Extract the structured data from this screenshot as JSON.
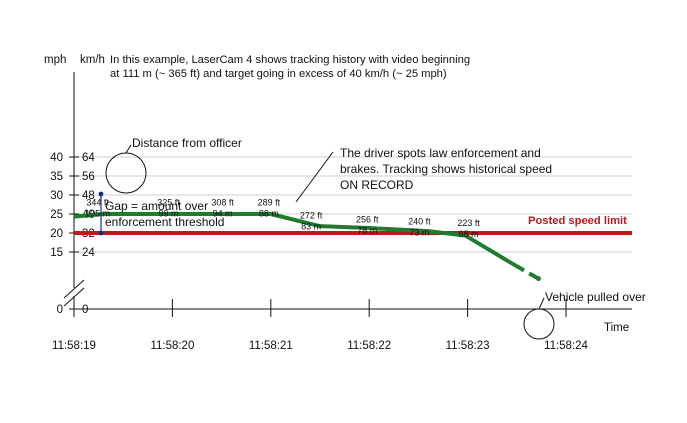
{
  "chart_data": {
    "type": "line",
    "axes": {
      "left_unit_label": "mph",
      "right_unit_label": "km/h",
      "x_label": "Time",
      "mph_ticks": [
        "40",
        "35",
        "30",
        "25",
        "20",
        "15",
        "0"
      ],
      "kmh_ticks": [
        "64",
        "56",
        "48",
        "40",
        "32",
        "24",
        "0"
      ],
      "x_ticks": [
        "11:58:19",
        "11:58:20",
        "11:58:21",
        "11:58:22",
        "11:58:23",
        "11:58:24"
      ],
      "ylim_mph": [
        0,
        40
      ]
    },
    "intro_text": [
      "In this example, LaserCam 4 shows tracking history with video beginning",
      "at 111 m (~ 365 ft) and target going in excess of 40 km/h (~ 25 mph)"
    ],
    "speed_series": {
      "color": "#1e7d2e",
      "points": [
        {
          "t": 0.0,
          "mph": 24.3
        },
        {
          "t": 0.3,
          "mph": 25.0
        },
        {
          "t": 1.0,
          "mph": 25.0
        },
        {
          "t": 2.0,
          "mph": 25.0
        },
        {
          "t": 2.5,
          "mph": 21.8
        },
        {
          "t": 3.0,
          "mph": 21.3
        },
        {
          "t": 3.6,
          "mph": 20.5
        },
        {
          "t": 3.98,
          "mph": 19.3
        },
        {
          "t": 4.45,
          "mph": 12.0
        }
      ],
      "dashed_tail": [
        {
          "t": 4.45,
          "mph": 12.0
        },
        {
          "t": 4.72,
          "mph": 8.0
        }
      ],
      "final_point": {
        "t": 4.72,
        "mph": 8.0
      }
    },
    "distance_labels": [
      {
        "t": 0.24,
        "mph": 27.2,
        "ft": "344 ft",
        "m": "105 m"
      },
      {
        "t": 0.96,
        "mph": 27.2,
        "ft": "325 ft",
        "m": "99 m"
      },
      {
        "t": 1.51,
        "mph": 27.2,
        "ft": "308 ft",
        "m": "94 m"
      },
      {
        "t": 1.98,
        "mph": 27.2,
        "ft": "289 ft",
        "m": "88 m"
      },
      {
        "t": 2.41,
        "mph": 23.8,
        "ft": "272 ft",
        "m": "83 m"
      },
      {
        "t": 2.98,
        "mph": 22.7,
        "ft": "256 ft",
        "m": "78 m"
      },
      {
        "t": 3.51,
        "mph": 22.2,
        "ft": "240 ft",
        "m": "73 m"
      },
      {
        "t": 4.01,
        "mph": 21.8,
        "ft": "223 ft",
        "m": "68 m"
      }
    ],
    "posted_limit": {
      "mph": 20,
      "label": "Posted speed limit",
      "color": "#c0181e"
    },
    "annotations": {
      "distance_from_officer": "Distance from officer",
      "gap": [
        "Gap = amount over",
        "enforcement threshold"
      ],
      "driver_spots": [
        "The driver spots law enforcement and",
        "brakes. Tracking shows historical speed",
        "ON RECORD"
      ],
      "vehicle_pulled_over": "Vehicle pulled over"
    },
    "grid": true
  }
}
